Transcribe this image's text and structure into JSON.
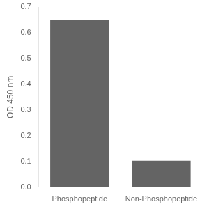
{
  "chart_data": {
    "type": "bar",
    "categories": [
      "Phosphopeptide",
      "Non-Phosphopeptide"
    ],
    "values": [
      0.65,
      0.103
    ],
    "color": "#646464",
    "ylabel": "OD 450 nm",
    "ylim": [
      0,
      0.7
    ],
    "yticks": [
      {
        "value": 0,
        "label": "0.0"
      },
      0.1,
      0.2,
      0.3,
      0.4,
      0.5,
      0.6,
      0.7
    ],
    "grid": false
  }
}
